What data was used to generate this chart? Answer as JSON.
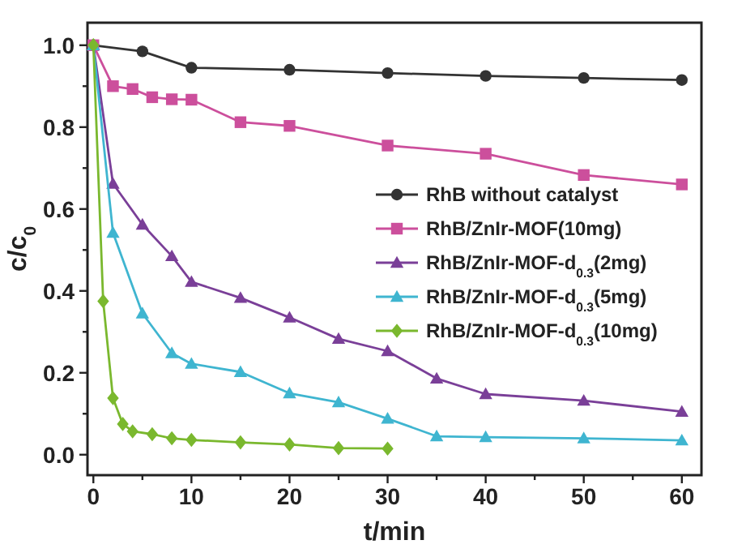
{
  "chart_data": {
    "type": "line",
    "xlabel": "t/min",
    "ylabel": "c/c$_{0}$",
    "xlim": [
      -0.6,
      62
    ],
    "ylim": [
      -0.05,
      1.055
    ],
    "xticks": [
      0,
      {
        "value": 5,
        "label": null
      },
      10,
      {
        "value": 15,
        "label": null
      },
      20,
      {
        "value": 25,
        "label": null
      },
      30,
      {
        "value": 35,
        "label": null
      },
      40,
      {
        "value": 45,
        "label": null
      },
      50,
      {
        "value": 55,
        "label": null
      },
      60
    ],
    "yticks": [
      {
        "value": 0,
        "label": "0.0"
      },
      {
        "value": 0.1,
        "label": null
      },
      {
        "value": 0.2,
        "label": "0.2"
      },
      {
        "value": 0.3,
        "label": null
      },
      {
        "value": 0.4,
        "label": "0.4"
      },
      {
        "value": 0.5,
        "label": null
      },
      {
        "value": 0.6,
        "label": "0.6"
      },
      {
        "value": 0.7,
        "label": null
      },
      {
        "value": 0.8,
        "label": "0.8"
      },
      {
        "value": 0.9,
        "label": null
      },
      {
        "value": 1.0,
        "label": "1.0"
      }
    ],
    "grid": false,
    "legend": "right",
    "series": [
      {
        "name": "RhB without catalyst",
        "color": "#333333",
        "marker": "circle",
        "x": [
          0,
          5,
          10,
          20,
          30,
          40,
          50,
          60
        ],
        "values": [
          1.0,
          0.985,
          0.945,
          0.94,
          0.932,
          0.925,
          0.92,
          0.915
        ]
      },
      {
        "name": "RhB/ZnIr-MOF(10mg)",
        "color": "#cc4f9c",
        "marker": "square",
        "x": [
          0,
          2,
          4,
          6,
          8,
          10,
          15,
          20,
          30,
          40,
          50,
          60
        ],
        "values": [
          1.0,
          0.9,
          0.893,
          0.873,
          0.868,
          0.867,
          0.812,
          0.803,
          0.755,
          0.735,
          0.683,
          0.66
        ]
      },
      {
        "name": "RhB/ZnIr-MOF-d$_{0.3}$(2mg)",
        "color": "#7a3f98",
        "marker": "triangle",
        "x": [
          0,
          2,
          5,
          8,
          10,
          15,
          20,
          25,
          30,
          35,
          40,
          50,
          60
        ],
        "values": [
          1.0,
          0.662,
          0.562,
          0.485,
          0.422,
          0.383,
          0.335,
          0.283,
          0.253,
          0.186,
          0.148,
          0.132,
          0.105
        ]
      },
      {
        "name": "RhB/ZnIr-MOF-d$_{0.3}$(5mg)",
        "color": "#3fb5d0",
        "marker": "triangle",
        "x": [
          0,
          2,
          5,
          8,
          10,
          15,
          20,
          25,
          30,
          35,
          40,
          50,
          60
        ],
        "values": [
          1.0,
          0.542,
          0.345,
          0.248,
          0.222,
          0.202,
          0.15,
          0.128,
          0.088,
          0.045,
          0.043,
          0.04,
          0.035
        ]
      },
      {
        "name": "RhB/ZnIr-MOF-d$_{0.3}$(10mg)",
        "color": "#7ab82e",
        "marker": "diamond",
        "x": [
          0,
          1,
          2,
          3,
          4,
          6,
          8,
          10,
          15,
          20,
          25,
          30
        ],
        "values": [
          1.0,
          0.375,
          0.138,
          0.075,
          0.057,
          0.05,
          0.04,
          0.036,
          0.03,
          0.025,
          0.016,
          0.015
        ]
      }
    ]
  }
}
